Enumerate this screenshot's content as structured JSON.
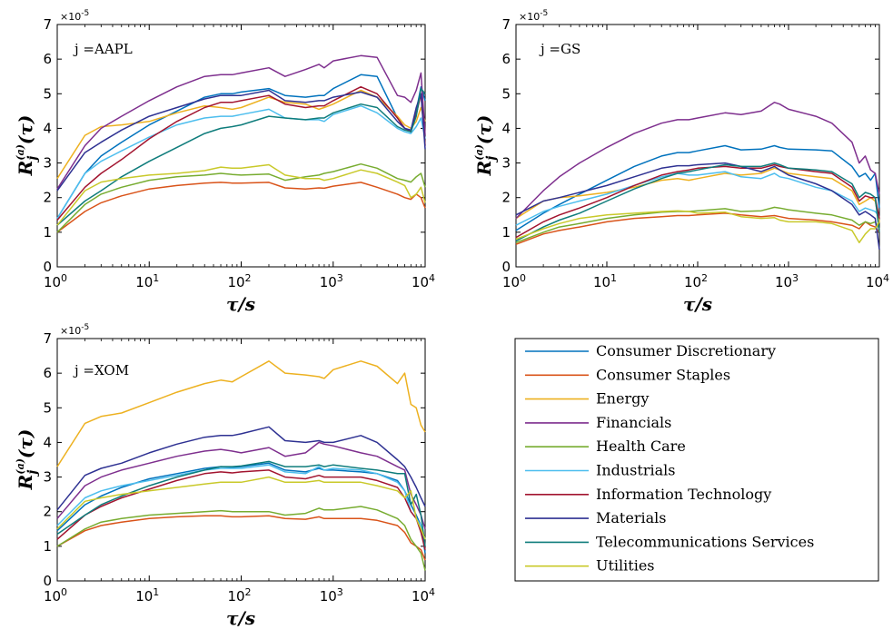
{
  "colors": {
    "Consumer Discretionary": "#0072BD",
    "Consumer Staples": "#D95319",
    "Energy": "#EDB120",
    "Financials": "#7E2F8E",
    "Health Care": "#77AC30",
    "Industrials": "#4DBEEE",
    "Information Technology": "#A2142F",
    "Materials": "#2E3192",
    "Telecommunications Services": "#0E7C7B",
    "Utilities": "#C9C92A"
  },
  "legend": {
    "entries": [
      "Consumer Discretionary",
      "Consumer Staples",
      "Energy",
      "Financials",
      "Health Care",
      "Industrials",
      "Information Technology",
      "Materials",
      "Telecommunications Services",
      "Utilities"
    ]
  },
  "chart_data": [
    {
      "type": "line",
      "annotation": "j =AAPL",
      "xlabel": "τ/s",
      "ylabel": "R_j^(a)(τ)",
      "x_scale": "log",
      "xlim": [
        1,
        10000
      ],
      "ylim": [
        0,
        7
      ],
      "y_multiplier": "×10^-5",
      "x_ticks": [
        "10^0",
        "10^1",
        "10^2",
        "10^3",
        "10^4"
      ],
      "y_ticks": [
        "0",
        "1",
        "2",
        "3",
        "4",
        "5",
        "6",
        "7"
      ],
      "x": [
        1,
        2,
        3,
        5,
        10,
        20,
        40,
        60,
        80,
        100,
        200,
        300,
        500,
        700,
        800,
        1000,
        2000,
        3000,
        5000,
        6000,
        7000,
        8000,
        9000,
        10000
      ],
      "series": [
        {
          "name": "Consumer Discretionary",
          "values": [
            1.4,
            2.7,
            3.2,
            3.6,
            4.1,
            4.5,
            4.9,
            5.0,
            5.0,
            5.05,
            5.15,
            4.95,
            4.9,
            4.95,
            4.95,
            5.15,
            5.55,
            5.5,
            4.3,
            4.0,
            3.9,
            4.5,
            5.2,
            4.8
          ]
        },
        {
          "name": "Consumer Staples",
          "values": [
            1.0,
            1.6,
            1.85,
            2.05,
            2.25,
            2.35,
            2.42,
            2.44,
            2.42,
            2.42,
            2.44,
            2.28,
            2.25,
            2.28,
            2.27,
            2.33,
            2.44,
            2.3,
            2.1,
            2.0,
            1.95,
            2.1,
            2.0,
            1.7
          ]
        },
        {
          "name": "Energy",
          "values": [
            2.55,
            3.8,
            4.05,
            4.1,
            4.2,
            4.45,
            4.65,
            4.6,
            4.55,
            4.6,
            4.9,
            4.75,
            4.7,
            4.55,
            4.6,
            4.7,
            5.1,
            4.9,
            4.35,
            4.1,
            4.0,
            4.2,
            4.6,
            4.2
          ]
        },
        {
          "name": "Financials",
          "values": [
            2.25,
            3.5,
            4.0,
            4.35,
            4.8,
            5.2,
            5.5,
            5.55,
            5.55,
            5.6,
            5.75,
            5.5,
            5.7,
            5.85,
            5.75,
            5.95,
            6.1,
            6.05,
            4.95,
            4.9,
            4.75,
            5.1,
            5.6,
            3.8
          ]
        },
        {
          "name": "Health Care",
          "values": [
            1.0,
            1.8,
            2.1,
            2.3,
            2.5,
            2.6,
            2.65,
            2.7,
            2.67,
            2.65,
            2.68,
            2.5,
            2.6,
            2.65,
            2.7,
            2.75,
            2.97,
            2.85,
            2.55,
            2.5,
            2.45,
            2.6,
            2.7,
            2.3
          ]
        },
        {
          "name": "Industrials",
          "values": [
            1.4,
            2.7,
            3.05,
            3.35,
            3.75,
            4.1,
            4.3,
            4.35,
            4.35,
            4.4,
            4.55,
            4.3,
            4.25,
            4.25,
            4.2,
            4.4,
            4.65,
            4.45,
            4.0,
            3.9,
            3.85,
            4.05,
            4.3,
            3.7
          ]
        },
        {
          "name": "Information Technology",
          "values": [
            1.35,
            2.3,
            2.7,
            3.1,
            3.7,
            4.2,
            4.6,
            4.75,
            4.75,
            4.8,
            4.95,
            4.7,
            4.6,
            4.65,
            4.65,
            4.8,
            5.2,
            5.0,
            4.3,
            4.0,
            3.9,
            4.4,
            5.0,
            3.5
          ]
        },
        {
          "name": "Materials",
          "values": [
            2.2,
            3.3,
            3.6,
            3.95,
            4.35,
            4.6,
            4.85,
            4.95,
            4.95,
            4.95,
            5.1,
            4.8,
            4.75,
            4.8,
            4.8,
            4.9,
            5.05,
            4.9,
            4.2,
            4.0,
            3.95,
            4.6,
            5.0,
            3.4
          ]
        },
        {
          "name": "Telecommunications Services",
          "values": [
            1.2,
            1.9,
            2.2,
            2.6,
            3.05,
            3.45,
            3.85,
            4.0,
            4.05,
            4.1,
            4.35,
            4.3,
            4.25,
            4.3,
            4.3,
            4.45,
            4.7,
            4.6,
            4.05,
            3.95,
            3.9,
            4.35,
            5.15,
            5.0
          ]
        },
        {
          "name": "Utilities",
          "values": [
            1.2,
            2.2,
            2.45,
            2.55,
            2.65,
            2.7,
            2.78,
            2.88,
            2.85,
            2.85,
            2.95,
            2.65,
            2.55,
            2.55,
            2.5,
            2.55,
            2.8,
            2.7,
            2.45,
            2.35,
            2.0,
            2.1,
            2.3,
            1.85
          ]
        }
      ]
    },
    {
      "type": "line",
      "annotation": "j =GS",
      "xlabel": "τ/s",
      "ylabel": "R_j^(a)(τ)",
      "x_scale": "log",
      "xlim": [
        1,
        10000
      ],
      "ylim": [
        0,
        7
      ],
      "y_multiplier": "×10^-5",
      "x_ticks": [
        "10^0",
        "10^1",
        "10^2",
        "10^3",
        "10^4"
      ],
      "y_ticks": [
        "0",
        "1",
        "2",
        "3",
        "4",
        "5",
        "6",
        "7"
      ],
      "x": [
        1,
        2,
        3,
        5,
        10,
        20,
        40,
        60,
        80,
        100,
        200,
        300,
        500,
        700,
        800,
        1000,
        2000,
        3000,
        5000,
        6000,
        7000,
        8000,
        9000,
        10000
      ],
      "series": [
        {
          "name": "Consumer Discretionary",
          "values": [
            1.05,
            1.55,
            1.8,
            2.1,
            2.5,
            2.9,
            3.2,
            3.3,
            3.3,
            3.35,
            3.5,
            3.38,
            3.4,
            3.5,
            3.45,
            3.4,
            3.38,
            3.35,
            2.9,
            2.6,
            2.7,
            2.5,
            2.7,
            1.7
          ]
        },
        {
          "name": "Consumer Staples",
          "values": [
            0.65,
            0.95,
            1.05,
            1.15,
            1.3,
            1.4,
            1.45,
            1.48,
            1.48,
            1.5,
            1.55,
            1.5,
            1.45,
            1.48,
            1.45,
            1.4,
            1.35,
            1.3,
            1.2,
            1.1,
            1.3,
            1.2,
            1.15,
            1.0
          ]
        },
        {
          "name": "Energy",
          "values": [
            1.4,
            1.9,
            2.0,
            2.05,
            2.15,
            2.3,
            2.5,
            2.55,
            2.5,
            2.55,
            2.7,
            2.65,
            2.7,
            2.85,
            2.8,
            2.7,
            2.6,
            2.55,
            2.2,
            1.8,
            1.9,
            2.0,
            1.9,
            1.3
          ]
        },
        {
          "name": "Financials",
          "values": [
            1.4,
            2.2,
            2.6,
            3.0,
            3.45,
            3.85,
            4.15,
            4.25,
            4.25,
            4.3,
            4.45,
            4.4,
            4.5,
            4.75,
            4.7,
            4.55,
            4.35,
            4.15,
            3.6,
            3.0,
            3.2,
            2.8,
            2.7,
            2.1
          ]
        },
        {
          "name": "Health Care",
          "values": [
            0.7,
            1.0,
            1.15,
            1.25,
            1.4,
            1.5,
            1.58,
            1.6,
            1.6,
            1.62,
            1.68,
            1.6,
            1.62,
            1.72,
            1.7,
            1.65,
            1.55,
            1.5,
            1.35,
            1.2,
            1.3,
            1.25,
            1.3,
            1.1
          ]
        },
        {
          "name": "Industrials",
          "values": [
            1.2,
            1.6,
            1.75,
            1.9,
            2.1,
            2.35,
            2.6,
            2.7,
            2.65,
            2.65,
            2.75,
            2.6,
            2.55,
            2.7,
            2.6,
            2.55,
            2.3,
            2.2,
            1.9,
            1.6,
            1.7,
            1.65,
            1.6,
            1.45
          ]
        },
        {
          "name": "Information Technology",
          "values": [
            0.85,
            1.3,
            1.5,
            1.7,
            2.0,
            2.35,
            2.65,
            2.75,
            2.8,
            2.85,
            2.9,
            2.85,
            2.85,
            2.95,
            2.9,
            2.85,
            2.75,
            2.7,
            2.3,
            1.9,
            2.05,
            2.0,
            2.0,
            1.4
          ]
        },
        {
          "name": "Materials",
          "values": [
            1.5,
            1.9,
            2.0,
            2.15,
            2.35,
            2.6,
            2.85,
            2.92,
            2.92,
            2.95,
            3.0,
            2.9,
            2.75,
            2.9,
            2.8,
            2.65,
            2.4,
            2.2,
            1.8,
            1.5,
            1.6,
            1.5,
            1.4,
            0.5
          ]
        },
        {
          "name": "Telecommunications Services",
          "values": [
            0.75,
            1.15,
            1.35,
            1.55,
            1.9,
            2.25,
            2.55,
            2.7,
            2.75,
            2.8,
            2.95,
            2.9,
            2.9,
            3.0,
            2.95,
            2.85,
            2.8,
            2.75,
            2.4,
            2.0,
            2.15,
            2.1,
            2.0,
            1.0
          ]
        },
        {
          "name": "Utilities",
          "values": [
            0.8,
            1.1,
            1.25,
            1.4,
            1.5,
            1.55,
            1.6,
            1.62,
            1.6,
            1.55,
            1.58,
            1.45,
            1.4,
            1.42,
            1.35,
            1.3,
            1.3,
            1.25,
            1.05,
            0.7,
            0.95,
            1.1,
            1.1,
            1.3
          ]
        }
      ]
    },
    {
      "type": "line",
      "annotation": "j =XOM",
      "xlabel": "τ/s",
      "ylabel": "R_j^(a)(τ)",
      "x_scale": "log",
      "xlim": [
        1,
        10000
      ],
      "ylim": [
        0,
        7
      ],
      "y_multiplier": "×10^-5",
      "x_ticks": [
        "10^0",
        "10^1",
        "10^2",
        "10^3",
        "10^4"
      ],
      "y_ticks": [
        "0",
        "1",
        "2",
        "3",
        "4",
        "5",
        "6",
        "7"
      ],
      "x": [
        1,
        2,
        3,
        5,
        10,
        20,
        40,
        60,
        80,
        100,
        200,
        300,
        500,
        700,
        800,
        1000,
        2000,
        3000,
        5000,
        6000,
        7000,
        8000,
        9000,
        10000
      ],
      "series": [
        {
          "name": "Consumer Discretionary",
          "values": [
            1.45,
            2.2,
            2.45,
            2.7,
            2.95,
            3.1,
            3.25,
            3.3,
            3.28,
            3.3,
            3.4,
            3.2,
            3.15,
            3.25,
            3.2,
            3.2,
            3.15,
            3.1,
            2.9,
            2.6,
            2.2,
            1.9,
            1.6,
            0.8
          ]
        },
        {
          "name": "Consumer Staples",
          "values": [
            1.0,
            1.45,
            1.6,
            1.7,
            1.8,
            1.85,
            1.88,
            1.88,
            1.85,
            1.85,
            1.88,
            1.8,
            1.78,
            1.85,
            1.8,
            1.8,
            1.8,
            1.75,
            1.6,
            1.4,
            1.1,
            1.0,
            0.9,
            0.6
          ]
        },
        {
          "name": "Energy",
          "values": [
            3.3,
            4.55,
            4.75,
            4.85,
            5.15,
            5.45,
            5.7,
            5.8,
            5.75,
            5.9,
            6.35,
            6.0,
            5.95,
            5.9,
            5.85,
            6.1,
            6.35,
            6.2,
            5.7,
            6.0,
            5.1,
            5.0,
            4.5,
            4.3
          ]
        },
        {
          "name": "Financials",
          "values": [
            1.8,
            2.75,
            3.0,
            3.2,
            3.4,
            3.6,
            3.75,
            3.8,
            3.75,
            3.7,
            3.85,
            3.6,
            3.7,
            4.0,
            3.95,
            3.9,
            3.7,
            3.6,
            3.3,
            3.2,
            2.5,
            2.2,
            1.9,
            1.5
          ]
        },
        {
          "name": "Health Care",
          "values": [
            1.0,
            1.5,
            1.7,
            1.8,
            1.9,
            1.95,
            2.0,
            2.03,
            2.0,
            2.0,
            2.0,
            1.9,
            1.95,
            2.1,
            2.05,
            2.05,
            2.15,
            2.05,
            1.8,
            1.6,
            1.2,
            1.0,
            0.8,
            0.3
          ]
        },
        {
          "name": "Industrials",
          "values": [
            1.6,
            2.4,
            2.6,
            2.75,
            2.9,
            3.05,
            3.2,
            3.25,
            3.25,
            3.25,
            3.35,
            3.15,
            3.1,
            3.3,
            3.2,
            3.25,
            3.2,
            3.1,
            2.85,
            2.6,
            2.0,
            1.8,
            1.6,
            1.2
          ]
        },
        {
          "name": "Information Technology",
          "values": [
            1.2,
            1.9,
            2.15,
            2.4,
            2.65,
            2.9,
            3.1,
            3.15,
            3.12,
            3.15,
            3.2,
            3.0,
            2.95,
            3.05,
            3.0,
            3.0,
            3.0,
            2.9,
            2.7,
            2.4,
            2.0,
            1.8,
            1.4,
            0.9
          ]
        },
        {
          "name": "Materials",
          "values": [
            2.05,
            3.05,
            3.25,
            3.4,
            3.7,
            3.95,
            4.15,
            4.2,
            4.2,
            4.25,
            4.45,
            4.05,
            4.0,
            4.05,
            4.0,
            4.0,
            4.2,
            4.0,
            3.5,
            3.3,
            3.0,
            2.7,
            2.4,
            2.15
          ]
        },
        {
          "name": "Telecommunications Services",
          "values": [
            1.35,
            1.9,
            2.2,
            2.45,
            2.75,
            3.0,
            3.2,
            3.3,
            3.3,
            3.32,
            3.45,
            3.3,
            3.3,
            3.35,
            3.3,
            3.35,
            3.25,
            3.2,
            3.1,
            3.1,
            2.2,
            2.5,
            1.9,
            1.0
          ]
        },
        {
          "name": "Utilities",
          "values": [
            1.5,
            2.3,
            2.4,
            2.5,
            2.6,
            2.7,
            2.8,
            2.85,
            2.85,
            2.85,
            3.0,
            2.85,
            2.85,
            2.9,
            2.85,
            2.85,
            2.85,
            2.75,
            2.6,
            2.4,
            2.6,
            1.8,
            1.5,
            1.2
          ]
        }
      ]
    }
  ]
}
